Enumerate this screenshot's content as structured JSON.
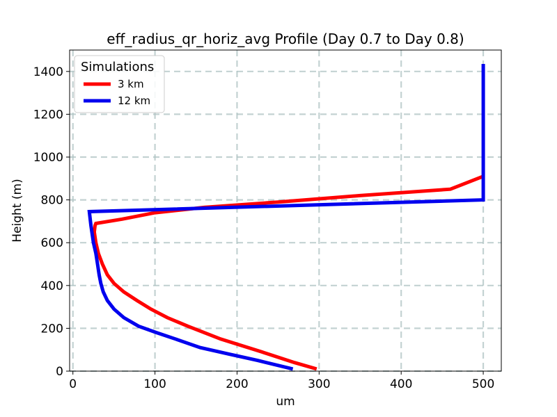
{
  "chart_data": {
    "type": "line",
    "title": "eff_radius_qr_horiz_avg Profile (Day 0.7 to Day 0.8)",
    "xlabel": "um",
    "ylabel": "Height (m)",
    "xlim": [
      -4,
      522
    ],
    "ylim": [
      0,
      1500
    ],
    "xticks": [
      0,
      100,
      200,
      300,
      400,
      500
    ],
    "yticks": [
      0,
      200,
      400,
      600,
      800,
      1000,
      1200,
      1400
    ],
    "grid": true,
    "legend": {
      "title": "Simulations",
      "position": "top-left"
    },
    "series": [
      {
        "name": "3 km",
        "color": "#ff0000",
        "x": [
          297,
          270,
          230,
          180,
          140,
          115,
          95,
          78,
          62,
          50,
          42,
          36,
          31,
          28,
          26,
          27,
          28,
          60,
          100,
          160,
          250,
          350,
          460,
          500
        ],
        "y": [
          10,
          40,
          90,
          150,
          210,
          250,
          290,
          330,
          370,
          410,
          450,
          500,
          550,
          600,
          650,
          680,
          690,
          710,
          740,
          765,
          790,
          820,
          850,
          910
        ]
      },
      {
        "name": "12 km",
        "color": "#0000ee",
        "x": [
          268,
          225,
          190,
          155,
          125,
          102,
          80,
          62,
          50,
          42,
          37,
          34,
          32,
          30,
          28,
          25,
          22,
          20,
          500,
          500,
          500
        ],
        "y": [
          10,
          50,
          80,
          110,
          150,
          180,
          210,
          250,
          290,
          330,
          370,
          410,
          450,
          500,
          550,
          600,
          680,
          745,
          800,
          1000,
          1435
        ]
      }
    ]
  }
}
